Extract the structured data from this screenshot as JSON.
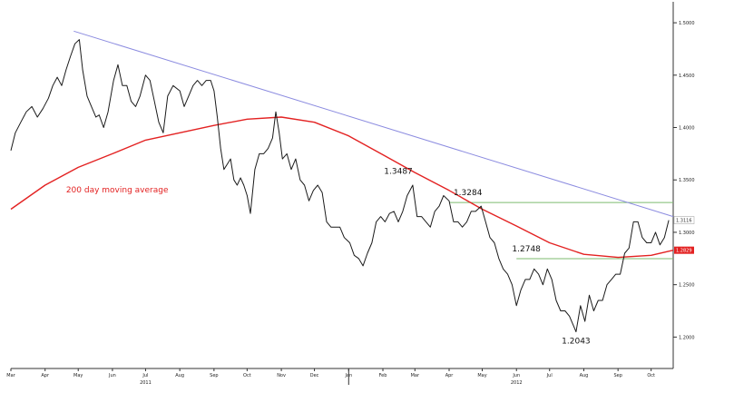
{
  "colors": {
    "price": "#1a1a1a",
    "moving_average": "#e32222",
    "trendline": "#8c8ce0",
    "support": "#7dbb6f",
    "badge": "#e32222",
    "axis": "#333333"
  },
  "chart_data": {
    "type": "line",
    "title": "",
    "xlabel": "",
    "ylabel": "",
    "ylim": [
      1.17,
      1.52
    ],
    "xlim": [
      "2011-03-01",
      "2012-10-21"
    ],
    "y_ticks": [
      1.2,
      1.25,
      1.3,
      1.35,
      1.4,
      1.45,
      1.5
    ],
    "y_tick_labels": [
      "1.2000",
      "1.2500",
      "1.3000",
      "1.3500",
      "1.4000",
      "1.4500",
      "1.5000"
    ],
    "x_ticks": [
      {
        "date": "2011-03-01",
        "label": "Mar"
      },
      {
        "date": "2011-04-01",
        "label": "Apr"
      },
      {
        "date": "2011-05-01",
        "label": "May"
      },
      {
        "date": "2011-06-01",
        "label": "Jun"
      },
      {
        "date": "2011-07-01",
        "label": "Jul"
      },
      {
        "date": "2011-08-01",
        "label": "Aug"
      },
      {
        "date": "2011-09-01",
        "label": "Sep"
      },
      {
        "date": "2011-10-01",
        "label": "Oct"
      },
      {
        "date": "2011-11-01",
        "label": "Nov"
      },
      {
        "date": "2011-12-01",
        "label": "Dec"
      },
      {
        "date": "2012-01-01",
        "label": "Jan"
      },
      {
        "date": "2012-02-01",
        "label": "Feb"
      },
      {
        "date": "2012-03-01",
        "label": "Mar"
      },
      {
        "date": "2012-04-01",
        "label": "Apr"
      },
      {
        "date": "2012-05-01",
        "label": "May"
      },
      {
        "date": "2012-06-01",
        "label": "Jun"
      },
      {
        "date": "2012-07-01",
        "label": "Jul"
      },
      {
        "date": "2012-08-01",
        "label": "Aug"
      },
      {
        "date": "2012-09-01",
        "label": "Sep"
      },
      {
        "date": "2012-10-01",
        "label": "Oct"
      }
    ],
    "year_labels": [
      {
        "date": "2011-07-01",
        "label": "2011"
      },
      {
        "date": "2012-06-01",
        "label": "2012"
      }
    ],
    "year_separator_date": "2012-01-01",
    "series": [
      {
        "name": "",
        "points": [
          [
            "2011-03-01",
            1.378
          ],
          [
            "2011-03-05",
            1.395
          ],
          [
            "2011-03-10",
            1.405
          ],
          [
            "2011-03-15",
            1.415
          ],
          [
            "2011-03-20",
            1.42
          ],
          [
            "2011-03-25",
            1.41
          ],
          [
            "2011-03-30",
            1.418
          ],
          [
            "2011-04-04",
            1.428
          ],
          [
            "2011-04-08",
            1.44
          ],
          [
            "2011-04-12",
            1.448
          ],
          [
            "2011-04-16",
            1.44
          ],
          [
            "2011-04-20",
            1.455
          ],
          [
            "2011-04-24",
            1.468
          ],
          [
            "2011-04-28",
            1.48
          ],
          [
            "2011-05-02",
            1.484
          ],
          [
            "2011-05-05",
            1.455
          ],
          [
            "2011-05-09",
            1.43
          ],
          [
            "2011-05-13",
            1.42
          ],
          [
            "2011-05-17",
            1.41
          ],
          [
            "2011-05-20",
            1.412
          ],
          [
            "2011-05-24",
            1.4
          ],
          [
            "2011-05-28",
            1.415
          ],
          [
            "2011-06-02",
            1.445
          ],
          [
            "2011-06-06",
            1.46
          ],
          [
            "2011-06-10",
            1.44
          ],
          [
            "2011-06-14",
            1.44
          ],
          [
            "2011-06-18",
            1.425
          ],
          [
            "2011-06-22",
            1.42
          ],
          [
            "2011-06-26",
            1.43
          ],
          [
            "2011-07-01",
            1.45
          ],
          [
            "2011-07-05",
            1.445
          ],
          [
            "2011-07-09",
            1.425
          ],
          [
            "2011-07-13",
            1.405
          ],
          [
            "2011-07-17",
            1.395
          ],
          [
            "2011-07-21",
            1.43
          ],
          [
            "2011-07-26",
            1.44
          ],
          [
            "2011-08-01",
            1.435
          ],
          [
            "2011-08-05",
            1.42
          ],
          [
            "2011-08-09",
            1.43
          ],
          [
            "2011-08-13",
            1.44
          ],
          [
            "2011-08-17",
            1.445
          ],
          [
            "2011-08-21",
            1.44
          ],
          [
            "2011-08-25",
            1.445
          ],
          [
            "2011-08-29",
            1.445
          ],
          [
            "2011-09-01",
            1.435
          ],
          [
            "2011-09-04",
            1.41
          ],
          [
            "2011-09-07",
            1.38
          ],
          [
            "2011-09-10",
            1.36
          ],
          [
            "2011-09-13",
            1.365
          ],
          [
            "2011-09-16",
            1.37
          ],
          [
            "2011-09-19",
            1.35
          ],
          [
            "2011-09-22",
            1.345
          ],
          [
            "2011-09-25",
            1.352
          ],
          [
            "2011-09-28",
            1.345
          ],
          [
            "2011-10-01",
            1.335
          ],
          [
            "2011-10-04",
            1.318
          ],
          [
            "2011-10-08",
            1.36
          ],
          [
            "2011-10-12",
            1.375
          ],
          [
            "2011-10-16",
            1.375
          ],
          [
            "2011-10-20",
            1.38
          ],
          [
            "2011-10-24",
            1.39
          ],
          [
            "2011-10-27",
            1.415
          ],
          [
            "2011-10-30",
            1.395
          ],
          [
            "2011-11-02",
            1.37
          ],
          [
            "2011-11-06",
            1.375
          ],
          [
            "2011-11-10",
            1.36
          ],
          [
            "2011-11-14",
            1.37
          ],
          [
            "2011-11-18",
            1.35
          ],
          [
            "2011-11-22",
            1.345
          ],
          [
            "2011-11-26",
            1.33
          ],
          [
            "2011-11-30",
            1.34
          ],
          [
            "2011-12-04",
            1.345
          ],
          [
            "2011-12-08",
            1.338
          ],
          [
            "2011-12-12",
            1.31
          ],
          [
            "2011-12-16",
            1.305
          ],
          [
            "2011-12-20",
            1.305
          ],
          [
            "2011-12-24",
            1.305
          ],
          [
            "2011-12-28",
            1.295
          ],
          [
            "2012-01-02",
            1.29
          ],
          [
            "2012-01-06",
            1.278
          ],
          [
            "2012-01-10",
            1.275
          ],
          [
            "2012-01-14",
            1.268
          ],
          [
            "2012-01-18",
            1.28
          ],
          [
            "2012-01-22",
            1.29
          ],
          [
            "2012-01-26",
            1.31
          ],
          [
            "2012-01-30",
            1.315
          ],
          [
            "2012-02-03",
            1.31
          ],
          [
            "2012-02-07",
            1.318
          ],
          [
            "2012-02-11",
            1.32
          ],
          [
            "2012-02-15",
            1.31
          ],
          [
            "2012-02-19",
            1.32
          ],
          [
            "2012-02-23",
            1.335
          ],
          [
            "2012-02-28",
            1.345
          ],
          [
            "2012-03-03",
            1.315
          ],
          [
            "2012-03-07",
            1.315
          ],
          [
            "2012-03-11",
            1.31
          ],
          [
            "2012-03-15",
            1.305
          ],
          [
            "2012-03-19",
            1.32
          ],
          [
            "2012-03-23",
            1.325
          ],
          [
            "2012-03-27",
            1.335
          ],
          [
            "2012-04-01",
            1.33
          ],
          [
            "2012-04-05",
            1.31
          ],
          [
            "2012-04-09",
            1.31
          ],
          [
            "2012-04-13",
            1.305
          ],
          [
            "2012-04-17",
            1.31
          ],
          [
            "2012-04-21",
            1.32
          ],
          [
            "2012-04-25",
            1.32
          ],
          [
            "2012-04-30",
            1.325
          ],
          [
            "2012-05-04",
            1.31
          ],
          [
            "2012-05-08",
            1.295
          ],
          [
            "2012-05-12",
            1.29
          ],
          [
            "2012-05-16",
            1.275
          ],
          [
            "2012-05-20",
            1.265
          ],
          [
            "2012-05-24",
            1.26
          ],
          [
            "2012-05-28",
            1.25
          ],
          [
            "2012-06-01",
            1.23
          ],
          [
            "2012-06-05",
            1.245
          ],
          [
            "2012-06-09",
            1.255
          ],
          [
            "2012-06-13",
            1.255
          ],
          [
            "2012-06-17",
            1.265
          ],
          [
            "2012-06-21",
            1.26
          ],
          [
            "2012-06-25",
            1.25
          ],
          [
            "2012-06-29",
            1.265
          ],
          [
            "2012-07-03",
            1.255
          ],
          [
            "2012-07-07",
            1.235
          ],
          [
            "2012-07-11",
            1.225
          ],
          [
            "2012-07-15",
            1.225
          ],
          [
            "2012-07-19",
            1.22
          ],
          [
            "2012-07-23",
            1.21
          ],
          [
            "2012-07-25",
            1.205
          ],
          [
            "2012-07-29",
            1.23
          ],
          [
            "2012-08-02",
            1.215
          ],
          [
            "2012-08-06",
            1.24
          ],
          [
            "2012-08-10",
            1.225
          ],
          [
            "2012-08-14",
            1.235
          ],
          [
            "2012-08-18",
            1.235
          ],
          [
            "2012-08-22",
            1.25
          ],
          [
            "2012-08-26",
            1.255
          ],
          [
            "2012-08-30",
            1.26
          ],
          [
            "2012-09-03",
            1.26
          ],
          [
            "2012-09-07",
            1.28
          ],
          [
            "2012-09-11",
            1.285
          ],
          [
            "2012-09-15",
            1.31
          ],
          [
            "2012-09-19",
            1.31
          ],
          [
            "2012-09-23",
            1.295
          ],
          [
            "2012-09-27",
            1.29
          ],
          [
            "2012-10-01",
            1.29
          ],
          [
            "2012-10-05",
            1.3
          ],
          [
            "2012-10-09",
            1.288
          ],
          [
            "2012-10-13",
            1.295
          ],
          [
            "2012-10-17",
            1.3116
          ]
        ]
      },
      {
        "name": "200 day moving average",
        "points": [
          [
            "2011-03-01",
            1.322
          ],
          [
            "2011-04-01",
            1.345
          ],
          [
            "2011-05-01",
            1.362
          ],
          [
            "2011-06-01",
            1.375
          ],
          [
            "2011-07-01",
            1.388
          ],
          [
            "2011-08-01",
            1.395
          ],
          [
            "2011-09-01",
            1.402
          ],
          [
            "2011-10-01",
            1.408
          ],
          [
            "2011-11-01",
            1.41
          ],
          [
            "2011-12-01",
            1.405
          ],
          [
            "2012-01-01",
            1.392
          ],
          [
            "2012-02-01",
            1.374
          ],
          [
            "2012-03-01",
            1.357
          ],
          [
            "2012-04-01",
            1.34
          ],
          [
            "2012-05-01",
            1.322
          ],
          [
            "2012-06-01",
            1.306
          ],
          [
            "2012-07-01",
            1.29
          ],
          [
            "2012-08-01",
            1.279
          ],
          [
            "2012-09-01",
            1.276
          ],
          [
            "2012-10-01",
            1.278
          ],
          [
            "2012-10-21",
            1.2829
          ]
        ]
      },
      {
        "name": "",
        "points": [
          [
            "2011-04-27",
            1.492
          ],
          [
            "2012-10-21",
            1.315
          ]
        ]
      }
    ],
    "reference_lines": [
      {
        "value": 1.3284,
        "from": "2012-04-01",
        "to": "2012-10-21"
      },
      {
        "value": 1.2748,
        "from": "2012-06-01",
        "to": "2012-10-21"
      }
    ],
    "annotations": [
      {
        "text": "1.3487",
        "date": "2012-02-15",
        "value": 1.3487,
        "position": "above"
      },
      {
        "text": "1.3284",
        "date": "2012-04-18",
        "value": 1.3284,
        "position": "above"
      },
      {
        "text": "1.2748",
        "date": "2012-06-10",
        "value": 1.2748,
        "position": "above"
      },
      {
        "text": "1.2043",
        "date": "2012-07-25",
        "value": 1.2043,
        "position": "below"
      }
    ],
    "ma_label": {
      "text": "200 day moving average",
      "date": "2011-04-20",
      "value": 1.338
    },
    "last_values": [
      {
        "text": "1.3116",
        "value": 1.3116,
        "style": "plain"
      },
      {
        "text": "1.2829",
        "value": 1.2829,
        "style": "badge"
      }
    ]
  }
}
